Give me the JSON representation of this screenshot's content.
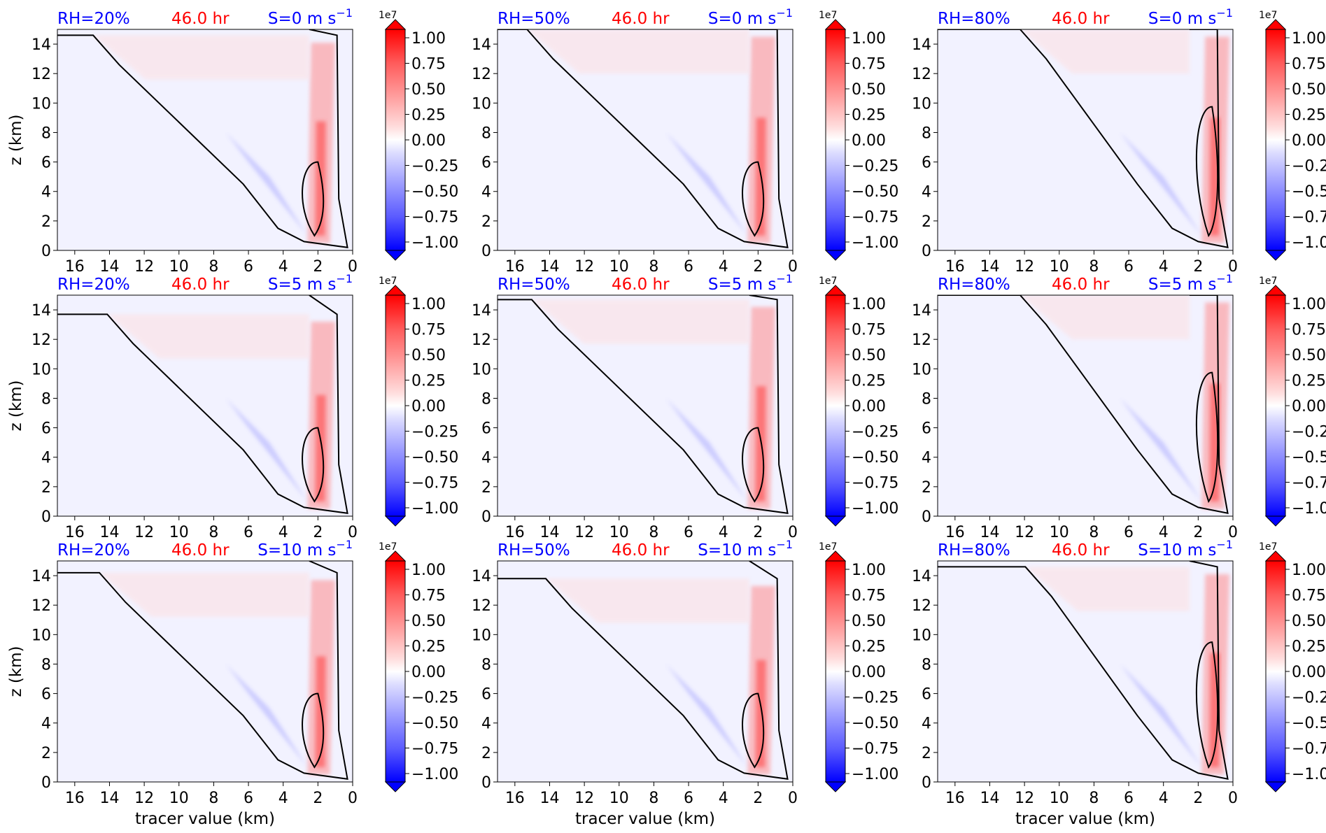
{
  "figure": {
    "ylabel": "z (km)",
    "xlabel": "tracer value (km)",
    "time_label": "46.0 hr",
    "colorbar_exponent": "1e7",
    "colorbar_ticks": [
      "1.00",
      "0.75",
      "0.50",
      "0.25",
      "0.00",
      "−0.25",
      "−0.50",
      "−0.75",
      "−1.00"
    ],
    "x_ticks": [
      "16",
      "14",
      "12",
      "10",
      "8",
      "6",
      "4",
      "2",
      "0"
    ],
    "y_ticks": [
      "0",
      "2",
      "4",
      "6",
      "8",
      "10",
      "12",
      "14"
    ],
    "colors": {
      "rh_label": "#0000ff",
      "time_label": "#ff0000",
      "shear_label": "#0000ff",
      "contour": "#000000"
    }
  },
  "chart_data": [
    {
      "type": "heatmap",
      "rh": "RH=20%",
      "shear": "S=0",
      "x_range": [
        17,
        0
      ],
      "y_range": [
        0,
        15
      ],
      "colorbar_range": [
        -1.0,
        1.0
      ],
      "cloud_top_km": 14.6
    },
    {
      "type": "heatmap",
      "rh": "RH=50%",
      "shear": "S=0",
      "x_range": [
        17,
        0
      ],
      "y_range": [
        0,
        15
      ],
      "colorbar_range": [
        -1.0,
        1.0
      ],
      "cloud_top_km": 15.0
    },
    {
      "type": "heatmap",
      "rh": "RH=80%",
      "shear": "S=0",
      "x_range": [
        17,
        0
      ],
      "y_range": [
        0,
        15
      ],
      "colorbar_range": [
        -1.0,
        1.0
      ],
      "cloud_top_km": 15.0
    },
    {
      "type": "heatmap",
      "rh": "RH=20%",
      "shear": "S=5",
      "x_range": [
        17,
        0
      ],
      "y_range": [
        0,
        15
      ],
      "colorbar_range": [
        -1.0,
        1.0
      ],
      "cloud_top_km": 13.7
    },
    {
      "type": "heatmap",
      "rh": "RH=50%",
      "shear": "S=5",
      "x_range": [
        17,
        0
      ],
      "y_range": [
        0,
        15
      ],
      "colorbar_range": [
        -1.0,
        1.0
      ],
      "cloud_top_km": 14.7
    },
    {
      "type": "heatmap",
      "rh": "RH=80%",
      "shear": "S=5",
      "x_range": [
        17,
        0
      ],
      "y_range": [
        0,
        15
      ],
      "colorbar_range": [
        -1.0,
        1.0
      ],
      "cloud_top_km": 15.0
    },
    {
      "type": "heatmap",
      "rh": "RH=20%",
      "shear": "S=10",
      "x_range": [
        17,
        0
      ],
      "y_range": [
        0,
        15
      ],
      "colorbar_range": [
        -1.0,
        1.0
      ],
      "cloud_top_km": 14.2
    },
    {
      "type": "heatmap",
      "rh": "RH=50%",
      "shear": "S=10",
      "x_range": [
        17,
        0
      ],
      "y_range": [
        0,
        15
      ],
      "colorbar_range": [
        -1.0,
        1.0
      ],
      "cloud_top_km": 13.8
    },
    {
      "type": "heatmap",
      "rh": "RH=80%",
      "shear": "S=10",
      "x_range": [
        17,
        0
      ],
      "y_range": [
        0,
        15
      ],
      "colorbar_range": [
        -1.0,
        1.0
      ],
      "cloud_top_km": 14.6
    }
  ]
}
